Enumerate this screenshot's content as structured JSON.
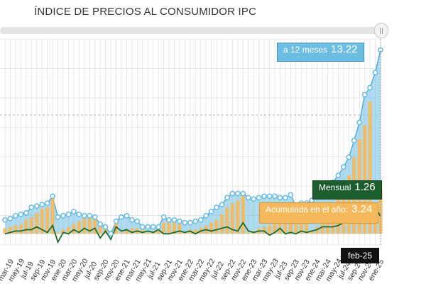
{
  "title": "ÍNDICE DE PRECIOS AL CONSUMIDOR IPC",
  "colors": {
    "annual": "#6cbde2",
    "monthly": "#1d6b2e",
    "cumulative": "#f5b95c",
    "grid": "#e3e3e3"
  },
  "chart_data": {
    "type": "area",
    "title": "ÍNDICE DE PRECIOS AL CONSUMIDOR IPC",
    "x": [
      "mar-19",
      "abr-19",
      "may-19",
      "jun-19",
      "jul-19",
      "ago-19",
      "sep-19",
      "oct-19",
      "nov-19",
      "dic-19",
      "ene-20",
      "feb-20",
      "mar-20",
      "abr-20",
      "may-20",
      "jun-20",
      "jul-20",
      "ago-20",
      "sep-20",
      "oct-20",
      "nov-20",
      "dic-20",
      "ene-21",
      "feb-21",
      "mar-21",
      "abr-21",
      "may-21",
      "jun-21",
      "jul-21",
      "ago-21",
      "sep-21",
      "oct-21",
      "nov-21",
      "dic-21",
      "ene-22",
      "feb-22",
      "mar-22",
      "abr-22",
      "may-22",
      "jun-22",
      "jul-22",
      "ago-22",
      "sep-22",
      "oct-22",
      "nov-22",
      "dic-22",
      "ene-23",
      "feb-23",
      "mar-23",
      "abr-23",
      "may-23",
      "jun-23",
      "jul-23",
      "ago-23",
      "sep-23",
      "oct-23",
      "nov-23",
      "dic-23",
      "ene-24",
      "feb-24",
      "mar-24",
      "abr-24",
      "may-24",
      "jun-24",
      "jul-24",
      "ago-24",
      "sep-24",
      "oct-24",
      "nov-24",
      "dic-24",
      "ene-25",
      "feb-25"
    ],
    "tick_labels": [
      "mar-19",
      "may-19",
      "jul-19",
      "sep-19",
      "nov-19",
      "ene-20",
      "mar-20",
      "may-20",
      "jul-20",
      "sep-20",
      "nov-20",
      "ene-21",
      "mar-21",
      "may-21",
      "jul-21",
      "sep-21",
      "nov-21",
      "ene-22",
      "mar-22",
      "may-22",
      "jul-22",
      "sep-22",
      "nov-22",
      "ene-23",
      "mar-23",
      "may-23",
      "jul-23",
      "sep-23",
      "nov-23",
      "ene-24",
      "mar-24",
      "may-24",
      "jul-24",
      "sep-24",
      "nov-24",
      "ene-25"
    ],
    "ylim": [
      -0.8,
      14
    ],
    "series": [
      {
        "name": "a 12 meses",
        "values": [
          1.0,
          1.1,
          1.3,
          1.4,
          1.5,
          1.9,
          2.0,
          2.1,
          2.2,
          2.7,
          1.2,
          1.3,
          1.4,
          1.6,
          1.4,
          1.3,
          1.3,
          1.2,
          0.7,
          0.5,
          0.0,
          0.9,
          1.2,
          1.3,
          1.0,
          0.9,
          0.5,
          0.5,
          0.5,
          0.5,
          1.2,
          1.0,
          1.0,
          0.9,
          0.8,
          0.8,
          0.9,
          1.0,
          1.3,
          1.6,
          1.9,
          2.1,
          2.6,
          2.9,
          2.9,
          2.9,
          2.6,
          2.5,
          2.6,
          2.7,
          2.7,
          2.7,
          2.6,
          2.6,
          2.8,
          2.0,
          2.2,
          2.2,
          2.4,
          2.7,
          3.3,
          3.5,
          3.7,
          4.2,
          4.8,
          5.5,
          6.7,
          8.0,
          10.0,
          10.5,
          11.6,
          13.22
        ]
      },
      {
        "name": "Acumulada en el año",
        "values": [
          0.4,
          0.5,
          0.6,
          0.7,
          1.0,
          1.2,
          1.5,
          1.8,
          1.9,
          2.6,
          0.1,
          0.3,
          0.5,
          0.7,
          0.9,
          1.1,
          1.2,
          1.1,
          0.6,
          0.4,
          0.2,
          0.9,
          0.1,
          0.3,
          0.4,
          0.4,
          0.3,
          0.1,
          0.2,
          0.4,
          0.8,
          0.8,
          0.8,
          0.9,
          0.1,
          0.3,
          0.3,
          0.4,
          0.6,
          0.8,
          1.0,
          1.4,
          1.9,
          2.2,
          2.4,
          2.9,
          0.1,
          0.2,
          0.4,
          0.5,
          0.6,
          0.8,
          1.0,
          1.0,
          1.0,
          0.9,
          1.1,
          1.3,
          0.2,
          0.5,
          1.0,
          1.5,
          2.0,
          2.5,
          3.3,
          4.2,
          5.5,
          6.8,
          7.8,
          9.5,
          1.9,
          3.24
        ]
      },
      {
        "name": "Mensual",
        "values": [
          0.0,
          0.1,
          0.2,
          0.2,
          0.3,
          0.3,
          0.5,
          0.3,
          0.1,
          0.6,
          -0.6,
          0.1,
          0.0,
          0.3,
          0.1,
          0.4,
          0.2,
          0.4,
          -0.3,
          0.2,
          -0.4,
          0.5,
          0.2,
          0.3,
          0.1,
          0.2,
          0.1,
          0.2,
          0.1,
          0.3,
          0.0,
          0.0,
          0.1,
          0.2,
          0.1,
          0.2,
          0.0,
          0.2,
          0.3,
          0.2,
          0.3,
          0.4,
          0.5,
          0.3,
          0.2,
          0.8,
          0.2,
          0.1,
          0.2,
          0.2,
          -0.1,
          0.1,
          0.4,
          0.0,
          0.1,
          0.0,
          0.2,
          0.1,
          0.2,
          0.3,
          0.5,
          0.5,
          0.5,
          0.6,
          0.8,
          0.9,
          1.3,
          1.3,
          1.0,
          1.7,
          1.9,
          1.26
        ]
      }
    ],
    "tooltips": {
      "annual": {
        "label": "a 12 meses",
        "value": "13.22"
      },
      "monthly": {
        "label": "Mensual",
        "value": "1.26"
      },
      "cumulative": {
        "label": "Acumulada en el año:",
        "value": "3.24"
      },
      "date": "feb-25"
    },
    "grid": true
  }
}
